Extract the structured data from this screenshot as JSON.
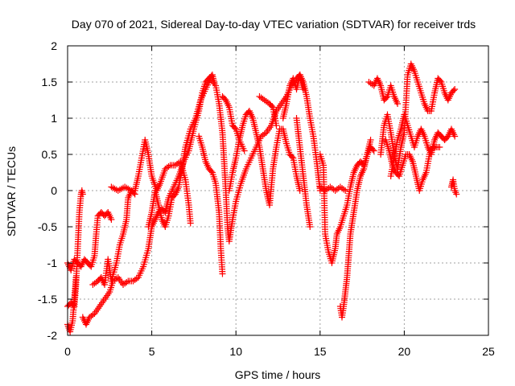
{
  "chart_data": {
    "type": "scatter",
    "title": "Day 070 of 2021, Sidereal Day-to-day VTEC variation (SDTVAR) for receiver trds",
    "xlabel": "GPS time / hours",
    "ylabel": "SDTVAR / TECUs",
    "xlim": [
      0,
      25
    ],
    "ylim": [
      -2,
      2
    ],
    "xticks": [
      "0",
      "5",
      "10",
      "15",
      "20",
      "25"
    ],
    "yticks": [
      "-2",
      "-1.5",
      "-1",
      "-0.5",
      "0",
      "0.5",
      "1",
      "1.5",
      "2"
    ],
    "grid": true,
    "marker": "+",
    "color": "#ff0000",
    "traces": [
      [
        [
          0,
          -1.0
        ],
        [
          0.2,
          -1.1
        ],
        [
          0.4,
          -0.95
        ],
        [
          0.6,
          -1.0
        ],
        [
          0.8,
          -1.05
        ],
        [
          1.0,
          -0.95
        ],
        [
          1.2,
          -1.0
        ],
        [
          1.4,
          -1.05
        ],
        [
          1.6,
          -0.9
        ],
        [
          1.7,
          -0.6
        ],
        [
          1.8,
          -0.35
        ],
        [
          2.0,
          -0.3
        ],
        [
          2.2,
          -0.35
        ],
        [
          2.4,
          -0.3
        ],
        [
          2.6,
          -0.4
        ]
      ],
      [
        [
          0,
          -1.6
        ],
        [
          0.2,
          -1.55
        ],
        [
          0.4,
          -1.6
        ],
        [
          0.5,
          -1.3
        ],
        [
          0.6,
          -0.8
        ],
        [
          0.7,
          -0.3
        ],
        [
          0.8,
          -0.05
        ],
        [
          0.85,
          0.0
        ],
        [
          0.9,
          -0.05
        ]
      ],
      [
        [
          0,
          -1.85
        ],
        [
          0.15,
          -1.95
        ],
        [
          0.3,
          -1.8
        ],
        [
          0.4,
          -1.5
        ],
        [
          0.5,
          -1.2
        ]
      ],
      [
        [
          0.9,
          -1.75
        ],
        [
          1.1,
          -1.85
        ],
        [
          1.3,
          -1.75
        ],
        [
          1.6,
          -1.7
        ],
        [
          1.9,
          -1.6
        ],
        [
          2.2,
          -1.5
        ],
        [
          2.5,
          -1.4
        ],
        [
          2.7,
          -1.25
        ],
        [
          3.0,
          -1.2
        ],
        [
          3.3,
          -1.3
        ],
        [
          3.6,
          -1.25
        ],
        [
          3.9,
          -1.25
        ],
        [
          4.2,
          -1.2
        ],
        [
          4.5,
          -1.05
        ],
        [
          4.8,
          -0.8
        ],
        [
          5.0,
          -0.5
        ],
        [
          5.2,
          -0.4
        ],
        [
          5.4,
          -0.3
        ],
        [
          5.6,
          -0.25
        ],
        [
          5.8,
          -0.3
        ],
        [
          6.0,
          -0.1
        ],
        [
          6.3,
          0.05
        ],
        [
          6.6,
          0.2
        ],
        [
          6.9,
          0.4
        ],
        [
          7.2,
          0.55
        ],
        [
          7.5,
          0.85
        ],
        [
          7.8,
          1.1
        ],
        [
          8.0,
          1.35
        ],
        [
          8.2,
          1.5
        ],
        [
          8.4,
          1.55
        ],
        [
          8.6,
          1.6
        ],
        [
          8.7,
          1.5
        ]
      ],
      [
        [
          1.5,
          -1.3
        ],
        [
          1.8,
          -1.25
        ],
        [
          2.0,
          -1.2
        ],
        [
          2.2,
          -1.3
        ],
        [
          2.4,
          -0.95
        ],
        [
          2.6,
          -1.25
        ],
        [
          2.9,
          -1.0
        ],
        [
          3.1,
          -0.75
        ],
        [
          3.3,
          -0.6
        ],
        [
          3.5,
          -0.4
        ],
        [
          3.6,
          -0.1
        ],
        [
          3.8,
          0.0
        ],
        [
          4.0,
          0.0
        ],
        [
          4.2,
          0.2
        ],
        [
          4.4,
          0.45
        ],
        [
          4.6,
          0.7
        ],
        [
          4.8,
          0.5
        ],
        [
          5.0,
          0.2
        ],
        [
          5.3,
          0.0
        ],
        [
          5.5,
          0.1
        ],
        [
          5.8,
          0.3
        ],
        [
          6.1,
          0.35
        ],
        [
          6.4,
          0.35
        ],
        [
          6.7,
          0.4
        ],
        [
          7.0,
          0.15
        ],
        [
          7.2,
          -0.2
        ],
        [
          7.3,
          -0.45
        ]
      ],
      [
        [
          2.6,
          0.05
        ],
        [
          3.0,
          0.0
        ],
        [
          3.4,
          0.05
        ],
        [
          3.8,
          0.0
        ],
        [
          4.0,
          -0.05
        ]
      ],
      [
        [
          4.8,
          -0.5
        ],
        [
          5.0,
          -0.3
        ],
        [
          5.2,
          0.0
        ],
        [
          5.4,
          -0.2
        ],
        [
          5.6,
          -0.4
        ],
        [
          5.8,
          -0.5
        ],
        [
          6.0,
          -0.35
        ],
        [
          6.2,
          -0.1
        ],
        [
          6.4,
          -0.05
        ],
        [
          6.6,
          0.05
        ],
        [
          6.8,
          0.3
        ],
        [
          7.0,
          0.6
        ],
        [
          7.3,
          0.85
        ],
        [
          7.6,
          1.0
        ],
        [
          7.9,
          1.25
        ],
        [
          8.2,
          1.4
        ],
        [
          8.5,
          1.55
        ],
        [
          8.8,
          1.45
        ],
        [
          9.0,
          1.2
        ],
        [
          9.2,
          0.8
        ],
        [
          9.3,
          0.4
        ],
        [
          9.4,
          0.0
        ],
        [
          9.5,
          -0.5
        ],
        [
          9.6,
          -0.7
        ],
        [
          9.8,
          -0.4
        ],
        [
          10.0,
          -0.15
        ],
        [
          10.3,
          0.1
        ],
        [
          10.6,
          0.3
        ],
        [
          10.9,
          0.45
        ],
        [
          11.2,
          0.6
        ],
        [
          11.5,
          0.75
        ],
        [
          11.8,
          0.8
        ],
        [
          12.1,
          0.9
        ],
        [
          12.4,
          1.1
        ],
        [
          12.7,
          1.2
        ],
        [
          13.0,
          1.3
        ],
        [
          13.3,
          1.45
        ],
        [
          13.6,
          1.55
        ],
        [
          13.8,
          1.6
        ],
        [
          14.0,
          1.4
        ]
      ],
      [
        [
          7.8,
          0.75
        ],
        [
          8.0,
          0.6
        ],
        [
          8.2,
          0.4
        ],
        [
          8.4,
          0.3
        ],
        [
          8.6,
          0.25
        ],
        [
          8.8,
          0.1
        ],
        [
          9.0,
          -0.3
        ],
        [
          9.1,
          -0.8
        ],
        [
          9.2,
          -1.15
        ]
      ],
      [
        [
          9.6,
          0.0
        ],
        [
          9.8,
          0.25
        ],
        [
          10.0,
          0.45
        ],
        [
          10.2,
          0.7
        ],
        [
          10.4,
          0.9
        ],
        [
          10.6,
          1.05
        ],
        [
          10.8,
          1.1
        ],
        [
          11.0,
          1.0
        ],
        [
          11.2,
          0.8
        ],
        [
          11.4,
          0.6
        ],
        [
          11.6,
          0.3
        ],
        [
          11.8,
          0.0
        ],
        [
          12.0,
          -0.2
        ],
        [
          12.2,
          0.3
        ],
        [
          12.4,
          0.6
        ],
        [
          12.6,
          0.85
        ],
        [
          12.8,
          0.85
        ],
        [
          13.0,
          0.65
        ],
        [
          13.2,
          0.5
        ],
        [
          13.4,
          0.45
        ],
        [
          13.6,
          0.2
        ],
        [
          13.8,
          0.0
        ]
      ],
      [
        [
          9.2,
          1.3
        ],
        [
          9.4,
          1.25
        ],
        [
          9.6,
          1.15
        ],
        [
          9.8,
          0.9
        ],
        [
          10.0,
          0.85
        ],
        [
          10.2,
          0.7
        ],
        [
          10.5,
          0.55
        ]
      ],
      [
        [
          11.4,
          1.3
        ],
        [
          11.7,
          1.25
        ],
        [
          12.0,
          1.2
        ],
        [
          12.2,
          1.15
        ],
        [
          12.4,
          0.9
        ]
      ],
      [
        [
          12.8,
          1.0
        ],
        [
          13.0,
          1.2
        ],
        [
          13.2,
          1.45
        ],
        [
          13.4,
          1.55
        ],
        [
          13.6,
          1.4
        ],
        [
          13.8,
          1.6
        ],
        [
          14.0,
          1.5
        ],
        [
          14.2,
          1.3
        ],
        [
          14.4,
          1.0
        ],
        [
          14.6,
          0.75
        ],
        [
          14.8,
          0.4
        ],
        [
          15.0,
          0.0
        ]
      ],
      [
        [
          13.6,
          1.0
        ],
        [
          13.8,
          0.6
        ],
        [
          14.0,
          0.2
        ],
        [
          14.2,
          -0.2
        ],
        [
          14.4,
          -0.5
        ]
      ],
      [
        [
          15.0,
          0.05
        ],
        [
          15.3,
          0.0
        ],
        [
          15.6,
          0.05
        ],
        [
          15.9,
          0.0
        ],
        [
          16.2,
          0.05
        ],
        [
          16.5,
          0.0
        ]
      ],
      [
        [
          15.0,
          0.5
        ],
        [
          15.2,
          0.35
        ],
        [
          15.3,
          -0.6
        ],
        [
          15.5,
          -0.85
        ],
        [
          15.7,
          -1.0
        ],
        [
          15.9,
          -0.8
        ],
        [
          16.0,
          -0.6
        ],
        [
          16.2,
          -0.5
        ],
        [
          16.4,
          -0.35
        ],
        [
          16.6,
          -0.2
        ],
        [
          16.8,
          0.05
        ],
        [
          17.0,
          0.25
        ],
        [
          17.2,
          0.35
        ],
        [
          17.4,
          0.4
        ],
        [
          17.6,
          0.35
        ],
        [
          17.8,
          0.5
        ],
        [
          18.0,
          0.6
        ],
        [
          18.2,
          0.55
        ]
      ],
      [
        [
          16.2,
          -1.6
        ],
        [
          16.3,
          -1.75
        ],
        [
          16.4,
          -1.6
        ],
        [
          16.5,
          -1.4
        ],
        [
          16.6,
          -1.2
        ],
        [
          16.7,
          -0.9
        ],
        [
          16.8,
          -0.6
        ],
        [
          17.0,
          -0.3
        ],
        [
          17.2,
          0.0
        ],
        [
          17.4,
          0.2
        ],
        [
          17.6,
          0.3
        ],
        [
          17.8,
          0.5
        ],
        [
          18.0,
          0.7
        ]
      ],
      [
        [
          17.9,
          1.5
        ],
        [
          18.2,
          1.45
        ],
        [
          18.4,
          1.55
        ],
        [
          18.6,
          1.45
        ],
        [
          18.8,
          1.25
        ],
        [
          19.0,
          1.3
        ],
        [
          19.2,
          1.45
        ],
        [
          19.4,
          1.3
        ],
        [
          19.6,
          1.2
        ]
      ],
      [
        [
          18.6,
          0.5
        ],
        [
          18.8,
          0.9
        ],
        [
          19.0,
          1.05
        ],
        [
          19.2,
          0.8
        ],
        [
          19.4,
          0.5
        ],
        [
          19.6,
          0.3
        ],
        [
          19.8,
          0.6
        ],
        [
          20.0,
          0.8
        ],
        [
          20.2,
          1.6
        ],
        [
          20.4,
          1.75
        ],
        [
          20.6,
          1.65
        ],
        [
          20.8,
          1.5
        ],
        [
          21.0,
          1.35
        ],
        [
          21.2,
          1.2
        ],
        [
          21.4,
          1.1
        ],
        [
          21.6,
          1.1
        ],
        [
          21.8,
          1.35
        ],
        [
          22.0,
          1.55
        ],
        [
          22.2,
          1.5
        ],
        [
          22.4,
          1.35
        ],
        [
          22.6,
          1.25
        ],
        [
          22.8,
          1.35
        ],
        [
          23.0,
          1.4
        ]
      ],
      [
        [
          19.2,
          0.2
        ],
        [
          19.4,
          0.45
        ],
        [
          19.6,
          0.7
        ],
        [
          19.8,
          0.85
        ],
        [
          20.0,
          1.05
        ],
        [
          20.2,
          0.9
        ],
        [
          20.4,
          0.75
        ],
        [
          20.6,
          0.6
        ],
        [
          20.8,
          0.75
        ],
        [
          21.0,
          0.85
        ],
        [
          21.2,
          0.75
        ],
        [
          21.4,
          0.6
        ],
        [
          21.6,
          0.5
        ],
        [
          21.8,
          0.7
        ],
        [
          22.0,
          0.8
        ],
        [
          22.2,
          0.75
        ],
        [
          22.4,
          0.7
        ],
        [
          22.6,
          0.75
        ],
        [
          22.8,
          0.85
        ],
        [
          23.0,
          0.75
        ]
      ],
      [
        [
          18.9,
          0.7
        ],
        [
          19.1,
          0.55
        ],
        [
          19.3,
          0.35
        ],
        [
          19.5,
          0.25
        ],
        [
          19.7,
          0.2
        ],
        [
          19.9,
          0.35
        ],
        [
          20.1,
          0.5
        ],
        [
          20.3,
          0.5
        ],
        [
          20.5,
          0.4
        ],
        [
          20.7,
          0.2
        ],
        [
          20.9,
          0.0
        ],
        [
          21.1,
          0.15
        ],
        [
          21.3,
          0.25
        ],
        [
          21.5,
          0.5
        ],
        [
          21.7,
          0.6
        ],
        [
          21.9,
          0.6
        ],
        [
          22.1,
          0.6
        ]
      ],
      [
        [
          22.8,
          0.05
        ],
        [
          22.9,
          0.15
        ],
        [
          23.0,
          0.0
        ],
        [
          23.1,
          -0.05
        ]
      ]
    ]
  }
}
